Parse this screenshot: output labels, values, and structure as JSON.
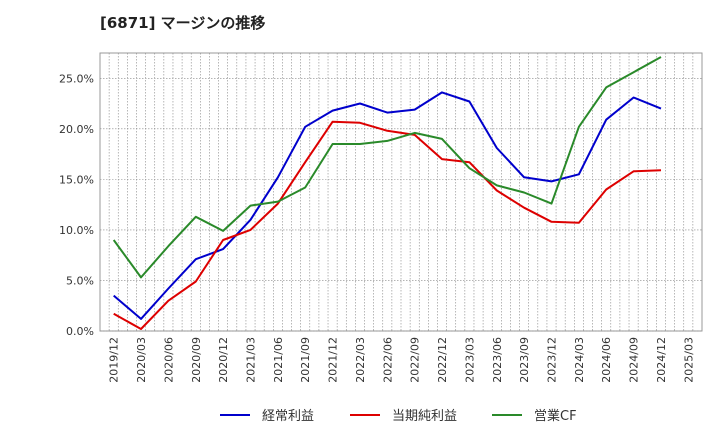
{
  "title": "[6871]  マージンの推移",
  "chart_data": {
    "type": "line",
    "title": "[6871]  マージンの推移",
    "xlabel": "",
    "ylabel": "",
    "x": [
      "2019/12",
      "2020/03",
      "2020/06",
      "2020/09",
      "2020/12",
      "2021/03",
      "2021/06",
      "2021/09",
      "2021/12",
      "2022/03",
      "2022/06",
      "2022/09",
      "2022/12",
      "2023/03",
      "2023/06",
      "2023/09",
      "2023/12",
      "2024/03",
      "2024/06",
      "2024/09",
      "2024/12",
      "2025/03"
    ],
    "ylim": [
      0,
      27.5
    ],
    "yticks": [
      "0.0%",
      "5.0%",
      "10.0%",
      "15.0%",
      "20.0%",
      "25.0%"
    ],
    "ytick_values": [
      0,
      5,
      10,
      15,
      20,
      25
    ],
    "grid": true,
    "legend_position": "bottom",
    "series": [
      {
        "name": "経常利益",
        "color": "#0000cc",
        "values": [
          3.5,
          1.2,
          4.2,
          7.1,
          8.1,
          11.0,
          15.2,
          20.2,
          21.8,
          22.5,
          21.6,
          21.9,
          23.6,
          22.7,
          18.1,
          15.2,
          14.8,
          15.5,
          20.9,
          23.1,
          22.0,
          null
        ]
      },
      {
        "name": "当期純利益",
        "color": "#dd0000",
        "values": [
          1.7,
          0.2,
          3.0,
          4.9,
          9.0,
          10.0,
          12.6,
          16.7,
          20.7,
          20.6,
          19.8,
          19.4,
          17.0,
          16.7,
          13.9,
          12.2,
          10.8,
          10.7,
          14.0,
          15.8,
          15.9,
          null
        ]
      },
      {
        "name": "営業CF",
        "color": "#2a8a2a",
        "values": [
          9.0,
          5.3,
          8.4,
          11.3,
          9.9,
          12.4,
          12.8,
          14.2,
          18.5,
          18.5,
          18.8,
          19.6,
          19.0,
          16.1,
          14.4,
          13.7,
          12.6,
          20.2,
          24.1,
          25.6,
          27.1,
          null
        ]
      }
    ]
  }
}
